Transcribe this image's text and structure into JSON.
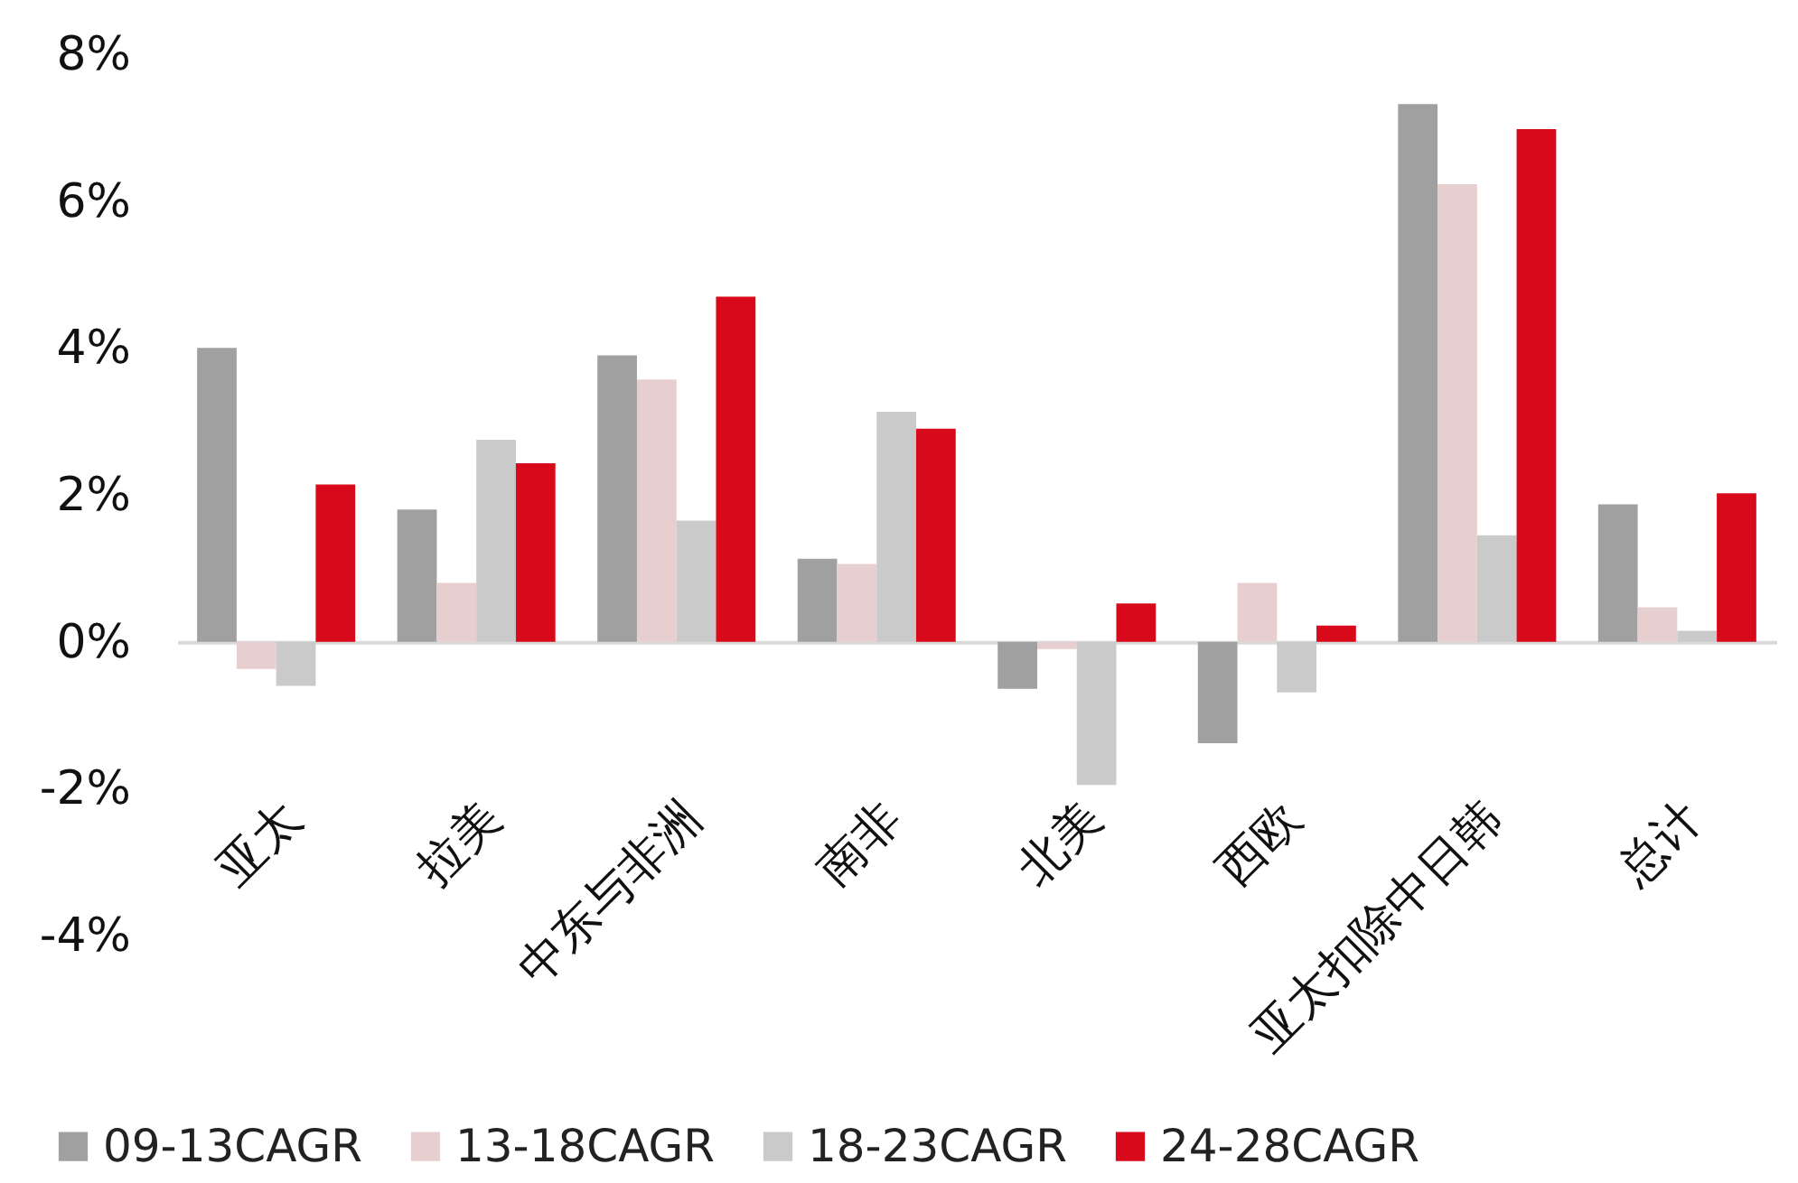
{
  "chart_data": {
    "type": "bar",
    "categories": [
      "亚太",
      "拉美",
      "中东与非洲",
      "南非",
      "北美",
      "西欧",
      "亚太扣除中日韩",
      "总计"
    ],
    "series": [
      {
        "name": "09-13CAGR",
        "color": "#a0a0a0",
        "values": [
          4.0,
          1.8,
          3.9,
          1.13,
          -0.64,
          -1.38,
          7.32,
          1.87
        ]
      },
      {
        "name": "13-18CAGR",
        "color": "#e8cfcf",
        "values": [
          -0.37,
          0.8,
          3.57,
          1.06,
          -0.1,
          0.8,
          6.23,
          0.47
        ]
      },
      {
        "name": "18-23CAGR",
        "color": "#cacaca",
        "values": [
          -0.6,
          2.75,
          1.65,
          3.13,
          -1.95,
          -0.69,
          1.45,
          0.15
        ]
      },
      {
        "name": "24-28CAGR",
        "color": "#d7091a",
        "values": [
          2.14,
          2.43,
          4.7,
          2.9,
          0.52,
          0.22,
          6.98,
          2.02
        ]
      }
    ],
    "ylim": [
      -4,
      8
    ],
    "yticks": [
      {
        "value": -4,
        "label": "-4%"
      },
      {
        "value": -2,
        "label": "-2%"
      },
      {
        "value": 0,
        "label": "0%"
      },
      {
        "value": 2,
        "label": "2%"
      },
      {
        "value": 4,
        "label": "4%"
      },
      {
        "value": 6,
        "label": "6%"
      },
      {
        "value": 8,
        "label": "8%"
      }
    ],
    "legend": "bottom"
  }
}
